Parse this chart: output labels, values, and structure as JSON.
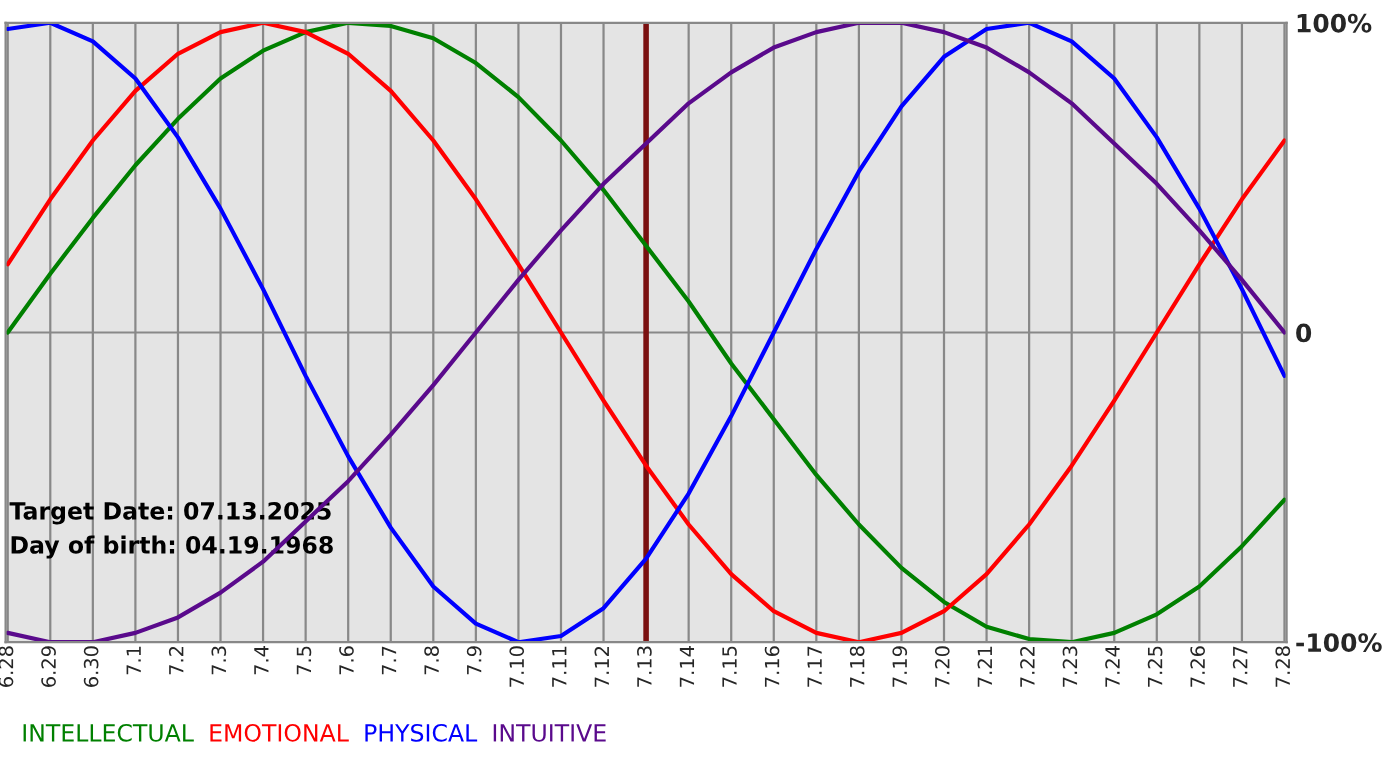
{
  "chart_data": {
    "type": "line",
    "categories": [
      "6.28",
      "6.29",
      "6.30",
      "7.1",
      "7.2",
      "7.3",
      "7.4",
      "7.5",
      "7.6",
      "7.7",
      "7.8",
      "7.9",
      "7.10",
      "7.11",
      "7.12",
      "7.13",
      "7.14",
      "7.15",
      "7.16",
      "7.17",
      "7.18",
      "7.19",
      "7.20",
      "7.21",
      "7.22",
      "7.23",
      "7.24",
      "7.25",
      "7.26",
      "7.27",
      "7.28"
    ],
    "series": [
      {
        "name": "INTELLECTUAL",
        "color": "#008000",
        "values": [
          0,
          19,
          37,
          54,
          69,
          82,
          91,
          97,
          100,
          99,
          95,
          87,
          76,
          62,
          46,
          28,
          10,
          -10,
          -28,
          -46,
          -62,
          -76,
          -87,
          -95,
          -99,
          -100,
          -97,
          -91,
          -82,
          -69,
          -54
        ]
      },
      {
        "name": "EMOTIONAL",
        "color": "#ff0000",
        "values": [
          22,
          43,
          62,
          78,
          90,
          97,
          100,
          97,
          90,
          78,
          62,
          43,
          22,
          0,
          -22,
          -43,
          -62,
          -78,
          -90,
          -97,
          -100,
          -97,
          -90,
          -78,
          -62,
          -43,
          -22,
          0,
          22,
          43,
          62
        ]
      },
      {
        "name": "PHYSICAL",
        "color": "#0000ff",
        "values": [
          98,
          100,
          94,
          82,
          63,
          40,
          14,
          -14,
          -40,
          -63,
          -82,
          -94,
          -100,
          -98,
          -89,
          -73,
          -52,
          -27,
          0,
          27,
          52,
          73,
          89,
          98,
          100,
          94,
          82,
          63,
          40,
          14,
          -14
        ]
      },
      {
        "name": "INTUITIVE",
        "color": "#5a0a8c",
        "values": [
          -97,
          -100,
          -100,
          -97,
          -92,
          -84,
          -74,
          -61,
          -48,
          -33,
          -17,
          0,
          17,
          33,
          48,
          61,
          74,
          84,
          92,
          97,
          100,
          100,
          97,
          92,
          84,
          74,
          61,
          48,
          33,
          17,
          0
        ]
      }
    ],
    "ylim": [
      -100,
      100
    ],
    "yticks": [
      {
        "value": 100,
        "label": "100%"
      },
      0,
      {
        "value": -100,
        "label": "-100%"
      }
    ],
    "ref_lines": [
      {
        "axis": "x",
        "value": "7.13",
        "color": "#7a1010"
      }
    ],
    "annotations": [
      "Target Date: 07.13.2025",
      "Day of birth: 04.19.1968"
    ],
    "grid": true,
    "legend": "bottom left",
    "line_style": "solid",
    "marker": "none"
  }
}
